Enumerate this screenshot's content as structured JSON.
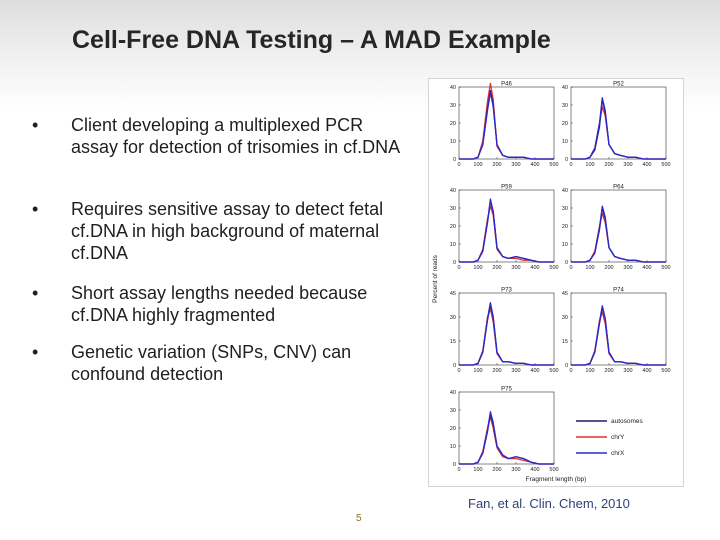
{
  "slide": {
    "title": "Cell-Free DNA Testing – A MAD Example",
    "bullet_char": "•",
    "bullets": [
      "Client developing a multiplexed PCR assay for detection of trisomies in cf.DNA",
      "Requires sensitive assay to detect fetal cf.DNA in high background of maternal cf.DNA",
      "Short assay lengths needed because cf.DNA highly fragmented",
      "Genetic variation (SNPs, CNV) can confound detection"
    ],
    "citation": "Fan, et al. Clin. Chem, 2010",
    "page_number": "5"
  },
  "chart_data": {
    "type": "line",
    "xlabel": "Fragment length (bp)",
    "ylabel": "Percent of reads",
    "x": [
      0,
      25,
      50,
      75,
      100,
      125,
      150,
      165,
      180,
      200,
      230,
      260,
      300,
      340,
      380,
      420,
      500
    ],
    "x_ticks": [
      0,
      100,
      200,
      300,
      400,
      500
    ],
    "xlim": [
      0,
      500
    ],
    "legend": [
      "autosomes",
      "chrY",
      "chrX"
    ],
    "legend_position": "bottom-right",
    "colors": {
      "autosomes": "#1a1a6e",
      "chrY": "#e03030",
      "chrX": "#2a2ad0"
    },
    "panels": [
      {
        "label": "P46",
        "ylim": [
          0,
          40
        ],
        "yticks": [
          0,
          10,
          20,
          30,
          40
        ],
        "series": [
          {
            "name": "autosomes",
            "values": [
              0,
              0,
              0,
              0,
              1,
              8,
              28,
              38,
              30,
              8,
              2,
              1,
              1,
              1,
              0,
              0,
              0
            ]
          },
          {
            "name": "chrY",
            "values": [
              0,
              0,
              0,
              0,
              1,
              10,
              32,
              42,
              33,
              7,
              2,
              1,
              1,
              1,
              0,
              0,
              0
            ]
          },
          {
            "name": "chrX",
            "values": [
              0,
              0,
              0,
              0,
              1,
              8,
              27,
              37,
              29,
              8,
              2,
              1,
              1,
              1,
              0,
              0,
              0
            ]
          }
        ]
      },
      {
        "label": "P52",
        "ylim": [
          0,
          40
        ],
        "yticks": [
          0,
          10,
          20,
          30,
          40
        ],
        "series": [
          {
            "name": "autosomes",
            "values": [
              0,
              0,
              0,
              0,
              1,
              5,
              18,
              33,
              26,
              8,
              3,
              2,
              1,
              1,
              0,
              0,
              0
            ]
          },
          {
            "name": "chrY",
            "values": [
              0,
              0,
              0,
              0,
              1,
              6,
              20,
              29,
              24,
              8,
              3,
              2,
              1,
              1,
              0,
              0,
              0
            ]
          },
          {
            "name": "chrX",
            "values": [
              0,
              0,
              0,
              0,
              1,
              6,
              20,
              34,
              27,
              8,
              3,
              2,
              1,
              1,
              0,
              0,
              0
            ]
          }
        ]
      },
      {
        "label": "P59",
        "ylim": [
          0,
          40
        ],
        "yticks": [
          0,
          10,
          20,
          30,
          40
        ],
        "series": [
          {
            "name": "autosomes",
            "values": [
              0,
              0,
              0,
              0,
              1,
              6,
              22,
              34,
              28,
              8,
              3,
              2,
              3,
              2,
              1,
              0,
              0
            ]
          },
          {
            "name": "chrY",
            "values": [
              0,
              0,
              0,
              0,
              1,
              7,
              24,
              31,
              26,
              7,
              3,
              2,
              2,
              1,
              1,
              0,
              0
            ]
          },
          {
            "name": "chrX",
            "values": [
              0,
              0,
              0,
              0,
              1,
              6,
              22,
              35,
              28,
              8,
              3,
              2,
              3,
              2,
              1,
              0,
              0
            ]
          }
        ]
      },
      {
        "label": "P64",
        "ylim": [
          0,
          40
        ],
        "yticks": [
          0,
          10,
          20,
          30,
          40
        ],
        "series": [
          {
            "name": "autosomes",
            "values": [
              0,
              0,
              0,
              0,
              1,
              5,
              18,
              30,
              24,
              8,
              3,
              2,
              1,
              1,
              0,
              0,
              0
            ]
          },
          {
            "name": "chrY",
            "values": [
              0,
              0,
              0,
              0,
              1,
              6,
              20,
              27,
              22,
              8,
              3,
              2,
              1,
              1,
              0,
              0,
              0
            ]
          },
          {
            "name": "chrX",
            "values": [
              0,
              0,
              0,
              0,
              1,
              5,
              19,
              31,
              25,
              8,
              3,
              2,
              1,
              1,
              0,
              0,
              0
            ]
          }
        ]
      },
      {
        "label": "P73",
        "ylim": [
          0,
          45
        ],
        "yticks": [
          0,
          15,
          30,
          45
        ],
        "series": [
          {
            "name": "autosomes",
            "values": [
              0,
              0,
              0,
              0,
              1,
              8,
              28,
              38,
              30,
              8,
              2,
              2,
              1,
              1,
              0,
              0,
              0
            ]
          },
          {
            "name": "chrY",
            "values": [
              0,
              0,
              0,
              0,
              1,
              9,
              30,
              35,
              27,
              7,
              2,
              2,
              1,
              1,
              0,
              0,
              0
            ]
          },
          {
            "name": "chrX",
            "values": [
              0,
              0,
              0,
              0,
              1,
              8,
              29,
              39,
              30,
              8,
              2,
              2,
              1,
              1,
              0,
              0,
              0
            ]
          }
        ]
      },
      {
        "label": "P74",
        "ylim": [
          0,
          45
        ],
        "yticks": [
          0,
          15,
          30,
          45
        ],
        "series": [
          {
            "name": "autosomes",
            "values": [
              0,
              0,
              0,
              0,
              1,
              8,
              26,
              36,
              29,
              8,
              2,
              2,
              1,
              1,
              0,
              0,
              0
            ]
          },
          {
            "name": "chrY",
            "values": [
              0,
              0,
              0,
              0,
              1,
              9,
              28,
              33,
              26,
              7,
              2,
              2,
              1,
              1,
              0,
              0,
              0
            ]
          },
          {
            "name": "chrX",
            "values": [
              0,
              0,
              0,
              0,
              1,
              8,
              27,
              37,
              29,
              8,
              2,
              2,
              1,
              1,
              0,
              0,
              0
            ]
          }
        ]
      },
      {
        "label": "P75",
        "ylim": [
          0,
          40
        ],
        "yticks": [
          0,
          10,
          20,
          30,
          40
        ],
        "series": [
          {
            "name": "autosomes",
            "values": [
              0,
              0,
              0,
              0,
              1,
              6,
              18,
              28,
              22,
              10,
              5,
              3,
              4,
              3,
              1,
              0,
              0
            ]
          },
          {
            "name": "chrY",
            "values": [
              0,
              0,
              0,
              0,
              1,
              7,
              20,
              26,
              20,
              9,
              4,
              3,
              3,
              2,
              1,
              0,
              0
            ]
          },
          {
            "name": "chrX",
            "values": [
              0,
              0,
              0,
              0,
              1,
              6,
              19,
              29,
              23,
              10,
              5,
              3,
              4,
              3,
              1,
              0,
              0
            ]
          }
        ]
      }
    ]
  }
}
